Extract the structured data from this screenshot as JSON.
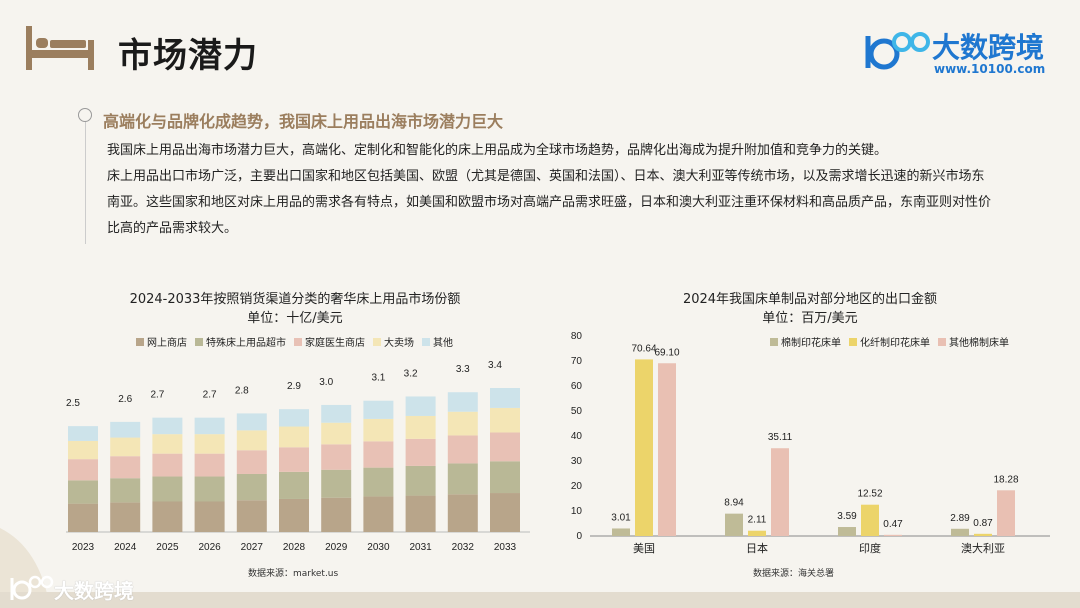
{
  "header": {
    "title": "市场潜力",
    "brand_name": "大数跨境",
    "brand_url": "www.10100.com"
  },
  "section": {
    "heading": "高端化与品牌化成趋势，我国床上用品出海市场潜力巨大",
    "para1": "我国床上用品出海市场潜力巨大，高端化、定制化和智能化的床上用品成为全球市场趋势，品牌化出海成为提升附加值和竞争力的关键。",
    "para2": "床上用品出口市场广泛，主要出口国家和地区包括美国、欧盟（尤其是德国、英国和法国）、日本、澳大利亚等传统市场，以及需求增长迅速的新兴市场东南亚。这些国家和地区对床上用品的需求各有特点，如美国和欧盟市场对高端产品需求旺盛，日本和澳大利亚注重环保材料和高品质产品，东南亚则对性价比高的产品需求较大。"
  },
  "colors": {
    "accent": "#9b7e5e",
    "brand": "#1f77d0"
  },
  "chart_data": [
    {
      "type": "bar",
      "stacked": true,
      "title": "2024-2033年按照销货渠道分类的奢华床上用品市场份额",
      "subtitle": "单位：十亿/美元",
      "source": "数据来源：market.us",
      "legend_position": "top",
      "categories": [
        "2023",
        "2024",
        "2025",
        "2026",
        "2027",
        "2028",
        "2029",
        "2030",
        "2031",
        "2032",
        "2033"
      ],
      "totals": [
        2.5,
        2.6,
        2.7,
        2.7,
        2.8,
        2.9,
        3.0,
        3.1,
        3.2,
        3.3,
        3.4
      ],
      "total_labels": [
        "2.5",
        "2.6",
        "2.7",
        "2.7",
        "2.8",
        "2.9",
        "3.0",
        "3.1",
        "3.2",
        "3.3",
        "3.4"
      ],
      "series": [
        {
          "name": "网上商店",
          "color": "#b8a58a",
          "values": [
            0.67,
            0.7,
            0.72,
            0.72,
            0.75,
            0.78,
            0.81,
            0.84,
            0.86,
            0.89,
            0.92
          ]
        },
        {
          "name": "特殊床上用品超市",
          "color": "#b9b896",
          "values": [
            0.55,
            0.57,
            0.59,
            0.59,
            0.62,
            0.64,
            0.66,
            0.68,
            0.7,
            0.73,
            0.75
          ]
        },
        {
          "name": "家庭医生商店",
          "color": "#e8c1b5",
          "values": [
            0.5,
            0.52,
            0.54,
            0.54,
            0.56,
            0.58,
            0.6,
            0.62,
            0.64,
            0.66,
            0.68
          ]
        },
        {
          "name": "大卖场",
          "color": "#f4e6b6",
          "values": [
            0.43,
            0.44,
            0.46,
            0.46,
            0.47,
            0.49,
            0.51,
            0.53,
            0.54,
            0.56,
            0.58
          ]
        },
        {
          "name": "其他",
          "color": "#cde3ea",
          "values": [
            0.35,
            0.37,
            0.39,
            0.39,
            0.4,
            0.41,
            0.42,
            0.43,
            0.46,
            0.46,
            0.47
          ]
        }
      ]
    },
    {
      "type": "bar",
      "title": "2024年我国床单制品对部分地区的出口金额",
      "subtitle": "单位：百万/美元",
      "source": "数据来源：海关总署",
      "legend_position": "top-right",
      "ylim": [
        0,
        80
      ],
      "yticks": [
        "0",
        "10",
        "20",
        "30",
        "40",
        "50",
        "60",
        "70",
        "80"
      ],
      "categories": [
        "美国",
        "日本",
        "印度",
        "澳大利亚"
      ],
      "series": [
        {
          "name": "棉制印花床单",
          "color": "#bfbb97",
          "values": [
            3.01,
            8.94,
            3.59,
            2.89
          ],
          "labels": [
            "3.01",
            "8.94",
            "3.59",
            "2.89"
          ]
        },
        {
          "name": "化纤制印花床单",
          "color": "#ecd46a",
          "values": [
            70.64,
            2.11,
            12.52,
            0.87
          ],
          "labels": [
            "70.64",
            "2.11",
            "12.52",
            "0.87"
          ]
        },
        {
          "name": "其他棉制床单",
          "color": "#e9c0b3",
          "values": [
            69.1,
            35.11,
            0.47,
            18.28
          ],
          "labels": [
            "69.10",
            "35.11",
            "0.47",
            "18.28"
          ]
        }
      ]
    }
  ]
}
